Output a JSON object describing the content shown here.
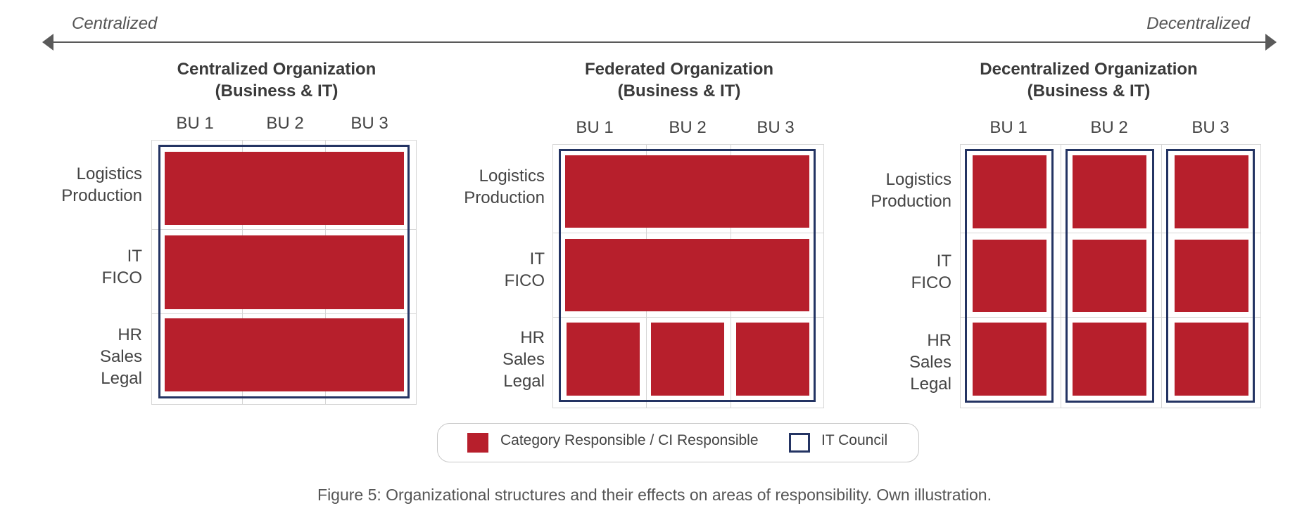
{
  "axis": {
    "left_label": "Centralized",
    "right_label": "Decentralized"
  },
  "panels": [
    {
      "title_line1": "Centralized Organization",
      "title_line2": "(Business & IT)",
      "columns": [
        "BU 1",
        "BU 2",
        "BU 3"
      ],
      "rows": [
        [
          "Logistics",
          "Production"
        ],
        [
          "IT",
          "FICO"
        ],
        [
          "HR",
          "Sales",
          "Legal"
        ]
      ]
    },
    {
      "title_line1": "Federated Organization",
      "title_line2": "(Business & IT)",
      "columns": [
        "BU 1",
        "BU 2",
        "BU 3"
      ],
      "rows": [
        [
          "Logistics",
          "Production"
        ],
        [
          "IT",
          "FICO"
        ],
        [
          "HR",
          "Sales",
          "Legal"
        ]
      ]
    },
    {
      "title_line1": "Decentralized Organization",
      "title_line2": "(Business & IT)",
      "columns": [
        "BU 1",
        "BU 2",
        "BU 3"
      ],
      "rows": [
        [
          "Logistics",
          "Production"
        ],
        [
          "IT",
          "FICO"
        ],
        [
          "HR",
          "Sales",
          "Legal"
        ]
      ]
    }
  ],
  "legend": {
    "responsible_label": "Category Responsible / CI Responsible",
    "council_label": "IT Council"
  },
  "caption": "Figure 5: Organizational structures and their effects on areas of responsibility. Own illustration.",
  "colors": {
    "responsible": "#b71f2c",
    "council": "#243463"
  }
}
